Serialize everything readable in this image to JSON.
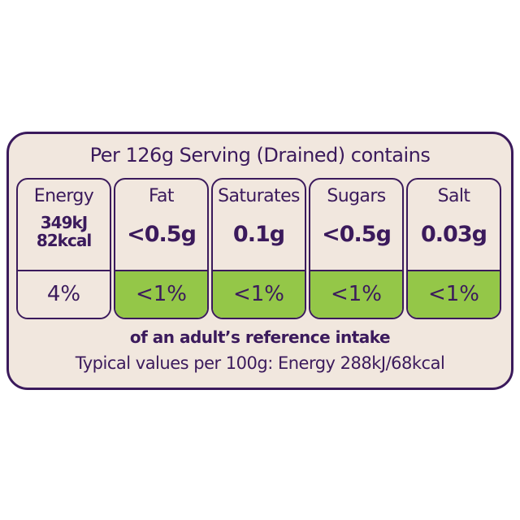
{
  "title": "Per 126g Serving (Drained) contains",
  "nutrients": [
    {
      "name": "Energy",
      "value_line1": "349kJ",
      "value_line2": "82kcal",
      "ri": "4%",
      "ri_color": "#f1e7de"
    },
    {
      "name": "Fat",
      "value": "<0.5g",
      "ri": "<1%",
      "ri_color": "#94c748"
    },
    {
      "name": "Saturates",
      "value": "0.1g",
      "ri": "<1%",
      "ri_color": "#94c748"
    },
    {
      "name": "Sugars",
      "value": "<0.5g",
      "ri": "<1%",
      "ri_color": "#94c748"
    },
    {
      "name": "Salt",
      "value": "0.03g",
      "ri": "<1%",
      "ri_color": "#94c748"
    }
  ],
  "reference_intake_note": "of an adult’s reference intake",
  "typical_values": "Typical values per 100g: Energy 288kJ/68kcal",
  "colors": {
    "border": "#3b1a5c",
    "background": "#f1e7de",
    "low": "#94c748"
  }
}
